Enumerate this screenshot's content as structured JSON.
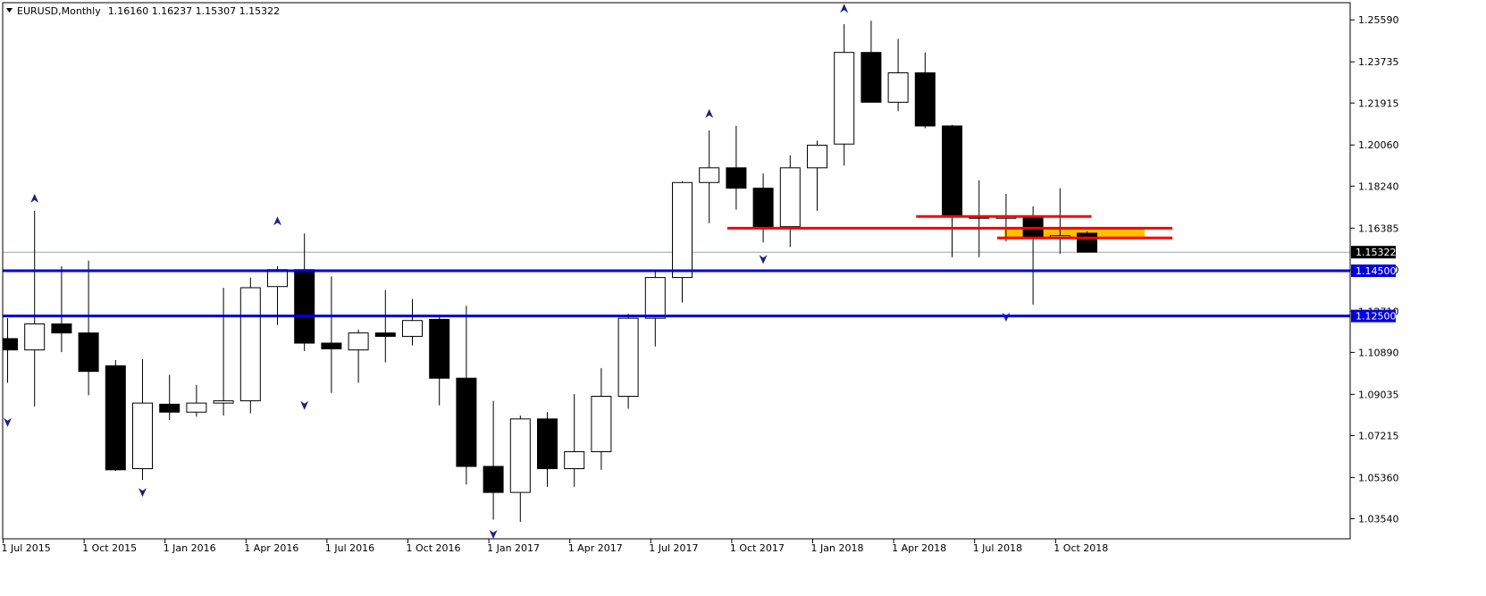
{
  "header": {
    "symbol": "EURUSD",
    "timeframe": "Monthly",
    "ohlc_text": "1.16160 1.16237 1.15307 1.15322"
  },
  "chart_data": {
    "type": "candlestick",
    "title": "EURUSD,Monthly",
    "ylim": [
      1.0265,
      1.2635
    ],
    "y_ticks": [
      "1.25590",
      "1.23735",
      "1.21915",
      "1.20060",
      "1.18240",
      "1.16385",
      "1.14530",
      "1.12710",
      "1.10890",
      "1.09035",
      "1.07215",
      "1.05360",
      "1.03540"
    ],
    "x_labels": [
      {
        "index": 0,
        "label": "1 Jul 2015"
      },
      {
        "index": 3,
        "label": "1 Oct 2015"
      },
      {
        "index": 6,
        "label": "1 Jan 2016"
      },
      {
        "index": 9,
        "label": "1 Apr 2016"
      },
      {
        "index": 12,
        "label": "1 Jul 2016"
      },
      {
        "index": 15,
        "label": "1 Oct 2016"
      },
      {
        "index": 18,
        "label": "1 Jan 2017"
      },
      {
        "index": 21,
        "label": "1 Apr 2017"
      },
      {
        "index": 24,
        "label": "1 Jul 2017"
      },
      {
        "index": 27,
        "label": "1 Oct 2017"
      },
      {
        "index": 30,
        "label": "1 Jan 2018"
      },
      {
        "index": 33,
        "label": "1 Apr 2018"
      },
      {
        "index": 36,
        "label": "1 Jul 2018"
      },
      {
        "index": 39,
        "label": "1 Oct 2018"
      }
    ],
    "candles": [
      {
        "t": "2015-06",
        "o": 1.115,
        "h": 1.124,
        "l": 1.0955,
        "c": 1.11
      },
      {
        "t": "2015-07",
        "o": 1.11,
        "h": 1.1715,
        "l": 1.085,
        "c": 1.1215
      },
      {
        "t": "2015-08",
        "o": 1.1215,
        "h": 1.147,
        "l": 1.109,
        "c": 1.1175
      },
      {
        "t": "2015-09",
        "o": 1.1175,
        "h": 1.1495,
        "l": 1.09,
        "c": 1.1005
      },
      {
        "t": "2015-10",
        "o": 1.103,
        "h": 1.1055,
        "l": 1.0565,
        "c": 1.057
      },
      {
        "t": "2015-11",
        "o": 1.0575,
        "h": 1.106,
        "l": 1.0525,
        "c": 1.0865
      },
      {
        "t": "2015-12",
        "o": 1.086,
        "h": 1.099,
        "l": 1.079,
        "c": 1.0825
      },
      {
        "t": "2016-01",
        "o": 1.0825,
        "h": 1.0945,
        "l": 1.0805,
        "c": 1.0865
      },
      {
        "t": "2016-02",
        "o": 1.0865,
        "h": 1.1375,
        "l": 1.081,
        "c": 1.0875
      },
      {
        "t": "2016-03",
        "o": 1.0875,
        "h": 1.142,
        "l": 1.082,
        "c": 1.1375
      },
      {
        "t": "2016-04",
        "o": 1.138,
        "h": 1.147,
        "l": 1.121,
        "c": 1.1455
      },
      {
        "t": "2016-05",
        "o": 1.1455,
        "h": 1.1615,
        "l": 1.1095,
        "c": 1.113
      },
      {
        "t": "2016-06",
        "o": 1.113,
        "h": 1.1425,
        "l": 1.091,
        "c": 1.1105
      },
      {
        "t": "2016-07",
        "o": 1.11,
        "h": 1.119,
        "l": 1.0955,
        "c": 1.1175
      },
      {
        "t": "2016-08",
        "o": 1.1175,
        "h": 1.1365,
        "l": 1.1045,
        "c": 1.116
      },
      {
        "t": "2016-09",
        "o": 1.116,
        "h": 1.1325,
        "l": 1.112,
        "c": 1.123
      },
      {
        "t": "2016-10",
        "o": 1.1235,
        "h": 1.1245,
        "l": 1.0855,
        "c": 1.0975
      },
      {
        "t": "2016-11",
        "o": 1.0975,
        "h": 1.1295,
        "l": 1.0505,
        "c": 1.0585
      },
      {
        "t": "2016-12",
        "o": 1.0585,
        "h": 1.0875,
        "l": 1.035,
        "c": 1.047
      },
      {
        "t": "2017-01",
        "o": 1.047,
        "h": 1.081,
        "l": 1.034,
        "c": 1.0795
      },
      {
        "t": "2017-02",
        "o": 1.0795,
        "h": 1.0825,
        "l": 1.0495,
        "c": 1.0575
      },
      {
        "t": "2017-03",
        "o": 1.0575,
        "h": 1.0905,
        "l": 1.0495,
        "c": 1.065
      },
      {
        "t": "2017-04",
        "o": 1.065,
        "h": 1.102,
        "l": 1.057,
        "c": 1.0895
      },
      {
        "t": "2017-05",
        "o": 1.0895,
        "h": 1.126,
        "l": 1.084,
        "c": 1.124
      },
      {
        "t": "2017-06",
        "o": 1.124,
        "h": 1.1455,
        "l": 1.1115,
        "c": 1.142
      },
      {
        "t": "2017-07",
        "o": 1.142,
        "h": 1.1845,
        "l": 1.131,
        "c": 1.184
      },
      {
        "t": "2017-08",
        "o": 1.184,
        "h": 1.207,
        "l": 1.166,
        "c": 1.1905
      },
      {
        "t": "2017-09",
        "o": 1.1905,
        "h": 1.209,
        "l": 1.172,
        "c": 1.1815
      },
      {
        "t": "2017-10",
        "o": 1.1815,
        "h": 1.188,
        "l": 1.1575,
        "c": 1.1645
      },
      {
        "t": "2017-11",
        "o": 1.1645,
        "h": 1.196,
        "l": 1.1555,
        "c": 1.1905
      },
      {
        "t": "2017-12",
        "o": 1.1905,
        "h": 1.2025,
        "l": 1.1715,
        "c": 1.2005
      },
      {
        "t": "2018-01",
        "o": 1.201,
        "h": 1.254,
        "l": 1.1915,
        "c": 1.2415
      },
      {
        "t": "2018-02",
        "o": 1.2415,
        "h": 1.2555,
        "l": 1.2205,
        "c": 1.2195
      },
      {
        "t": "2018-03",
        "o": 1.2195,
        "h": 1.2475,
        "l": 1.2155,
        "c": 1.2325
      },
      {
        "t": "2018-04",
        "o": 1.2325,
        "h": 1.2415,
        "l": 1.208,
        "c": 1.209
      },
      {
        "t": "2018-05",
        "o": 1.209,
        "h": 1.2095,
        "l": 1.151,
        "c": 1.169
      },
      {
        "t": "2018-06",
        "o": 1.169,
        "h": 1.185,
        "l": 1.151,
        "c": 1.1685
      },
      {
        "t": "2018-07",
        "o": 1.1685,
        "h": 1.179,
        "l": 1.158,
        "c": 1.169
      },
      {
        "t": "2018-08",
        "o": 1.169,
        "h": 1.1735,
        "l": 1.13,
        "c": 1.16
      },
      {
        "t": "2018-09",
        "o": 1.1605,
        "h": 1.1815,
        "l": 1.1525,
        "c": 1.1605
      },
      {
        "t": "2018-10",
        "o": 1.1616,
        "h": 1.16237,
        "l": 1.15307,
        "c": 1.15322
      }
    ],
    "fractals_up": [
      {
        "index": 1,
        "price": 1.1715
      },
      {
        "index": 10,
        "price": 1.1615
      },
      {
        "index": 26,
        "price": 1.209
      },
      {
        "index": 31,
        "price": 1.2555
      }
    ],
    "fractals_down": [
      {
        "index": 0,
        "price": 1.0835
      },
      {
        "index": 5,
        "price": 1.0525
      },
      {
        "index": 11,
        "price": 1.091
      },
      {
        "index": 18,
        "price": 1.034
      },
      {
        "index": 28,
        "price": 1.1555
      },
      {
        "index": 37,
        "price": 1.13
      }
    ],
    "current_price": {
      "value": 1.15322,
      "label": "1.15322"
    },
    "support_lines": [
      {
        "value": 1.145,
        "label": "1.14500",
        "color": "#0000dd"
      },
      {
        "value": 1.125,
        "label": "1.12500",
        "color": "#0000dd"
      }
    ],
    "resistance_lines": [
      {
        "value": 1.169,
        "from_index": 34,
        "to_index": 40,
        "color": "#ff0000"
      },
      {
        "value": 1.1638,
        "from_index": 27,
        "to_index": 43,
        "color": "#ff0000"
      },
      {
        "value": 1.1595,
        "from_index": 37,
        "to_index": 43,
        "color": "#ff0000"
      }
    ],
    "zone": {
      "from_index": 37,
      "to_index": 42,
      "y_top": 1.1638,
      "y_bottom": 1.1598,
      "color": "#ffc000"
    },
    "colors": {
      "bull_fill": "#ffffff",
      "bear_fill": "#000000",
      "candle_stroke": "#000000",
      "fractal": "#1a237e"
    }
  }
}
